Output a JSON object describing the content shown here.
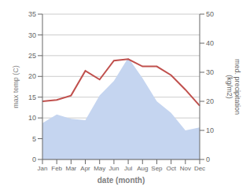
{
  "chart_data": {
    "type": "line",
    "categories": [
      "Jan",
      "Feb",
      "Mar",
      "Apr",
      "May",
      "Jun",
      "Jul",
      "Aug",
      "Sep",
      "Oct",
      "Nov",
      "Dec"
    ],
    "series": [
      {
        "type": "area",
        "color": "#c5d5f0",
        "values": [
          8.75,
          10.85,
          9.8,
          9.45,
          15.4,
          18.9,
          24.5,
          19.6,
          14,
          11.2,
          7,
          7.7
        ]
      },
      {
        "type": "line",
        "color": "#c0504d",
        "axis": "y2",
        "values": [
          20.0,
          20.5,
          22.0,
          30.5,
          27.5,
          34.0,
          34.5,
          32.0,
          32.0,
          29.0,
          24.0,
          18.5
        ]
      }
    ],
    "xlabel": "date (month)",
    "ylabel": "max temp (C)",
    "y2label": "med. precipitation\n(kg/m2)",
    "ylim": [
      0,
      35
    ],
    "yticks": [
      0,
      5,
      10,
      15,
      20,
      25,
      30,
      35
    ],
    "y2lim": [
      0,
      50
    ],
    "y2ticks": [
      0,
      10,
      20,
      30,
      40,
      50
    ],
    "grid": true
  }
}
